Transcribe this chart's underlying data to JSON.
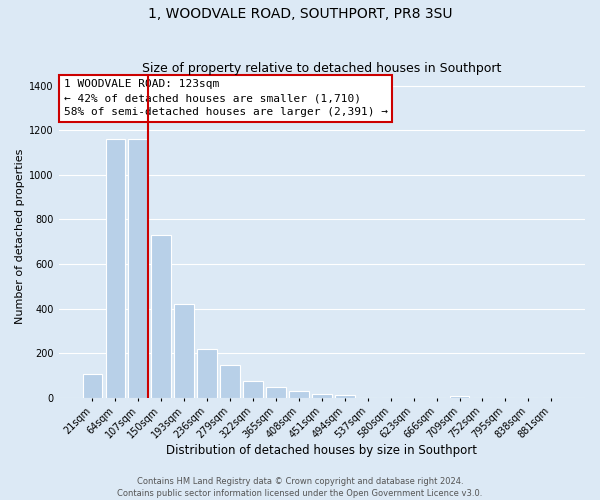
{
  "title": "1, WOODVALE ROAD, SOUTHPORT, PR8 3SU",
  "subtitle": "Size of property relative to detached houses in Southport",
  "xlabel": "Distribution of detached houses by size in Southport",
  "ylabel": "Number of detached properties",
  "bin_labels": [
    "21sqm",
    "64sqm",
    "107sqm",
    "150sqm",
    "193sqm",
    "236sqm",
    "279sqm",
    "322sqm",
    "365sqm",
    "408sqm",
    "451sqm",
    "494sqm",
    "537sqm",
    "580sqm",
    "623sqm",
    "666sqm",
    "709sqm",
    "752sqm",
    "795sqm",
    "838sqm",
    "881sqm"
  ],
  "bar_heights": [
    107,
    1160,
    1160,
    730,
    420,
    220,
    148,
    73,
    50,
    30,
    18,
    13,
    0,
    0,
    0,
    0,
    8,
    0,
    0,
    0,
    0
  ],
  "bar_color": "#b8d0e8",
  "bar_edge_color": "#ffffff",
  "vline_color": "#cc0000",
  "annotation_box_text": "1 WOODVALE ROAD: 123sqm\n← 42% of detached houses are smaller (1,710)\n58% of semi-detached houses are larger (2,391) →",
  "annotation_box_edgecolor": "#cc0000",
  "annotation_box_facecolor": "#ffffff",
  "ylim": [
    0,
    1450
  ],
  "yticks": [
    0,
    200,
    400,
    600,
    800,
    1000,
    1200,
    1400
  ],
  "grid_color": "#ffffff",
  "background_color": "#dce9f5",
  "footer_line1": "Contains HM Land Registry data © Crown copyright and database right 2024.",
  "footer_line2": "Contains public sector information licensed under the Open Government Licence v3.0.",
  "title_fontsize": 10,
  "subtitle_fontsize": 9,
  "xlabel_fontsize": 8.5,
  "ylabel_fontsize": 8,
  "tick_fontsize": 7,
  "footer_fontsize": 6,
  "annotation_fontsize": 8
}
